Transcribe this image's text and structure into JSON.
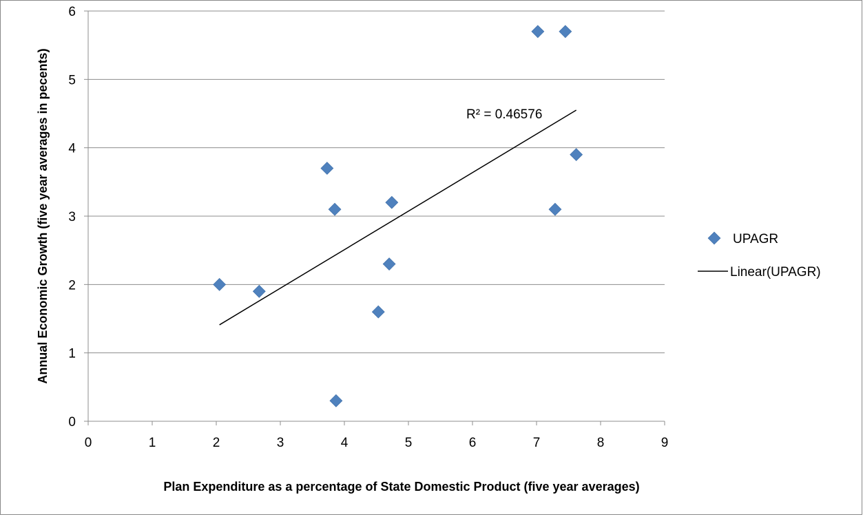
{
  "chart_data": {
    "type": "scatter",
    "xlabel": "Plan Expenditure as a percentage of State Domestic Product (five year averages)",
    "ylabel": "Annual Economic Growth (five year averages  in pecents)",
    "xlim": [
      0,
      9
    ],
    "ylim": [
      0,
      6
    ],
    "x_ticks": [
      "0",
      "1",
      "2",
      "3",
      "4",
      "5",
      "6",
      "7",
      "8",
      "9"
    ],
    "y_ticks": [
      "0",
      "1",
      "2",
      "3",
      "4",
      "5",
      "6"
    ],
    "grid": "horizontal",
    "legend_position": "right",
    "series": [
      {
        "name": "UPAGR",
        "marker": "diamond",
        "color": "#4F81BD",
        "points": [
          {
            "x": 2.05,
            "y": 2.0
          },
          {
            "x": 2.67,
            "y": 1.9
          },
          {
            "x": 3.73,
            "y": 3.7
          },
          {
            "x": 3.85,
            "y": 3.1
          },
          {
            "x": 3.87,
            "y": 0.3
          },
          {
            "x": 4.53,
            "y": 1.6
          },
          {
            "x": 4.7,
            "y": 2.3
          },
          {
            "x": 4.74,
            "y": 3.2
          },
          {
            "x": 7.02,
            "y": 5.7
          },
          {
            "x": 7.29,
            "y": 3.1
          },
          {
            "x": 7.45,
            "y": 5.7
          },
          {
            "x": 7.62,
            "y": 3.9
          }
        ]
      }
    ],
    "trendline": {
      "name": "Linear(UPAGR)",
      "type": "linear",
      "color": "#000000",
      "start": {
        "x": 2.05,
        "y": 1.41
      },
      "end": {
        "x": 7.62,
        "y": 4.55
      },
      "r2_label": "R² = 0.46576"
    }
  }
}
